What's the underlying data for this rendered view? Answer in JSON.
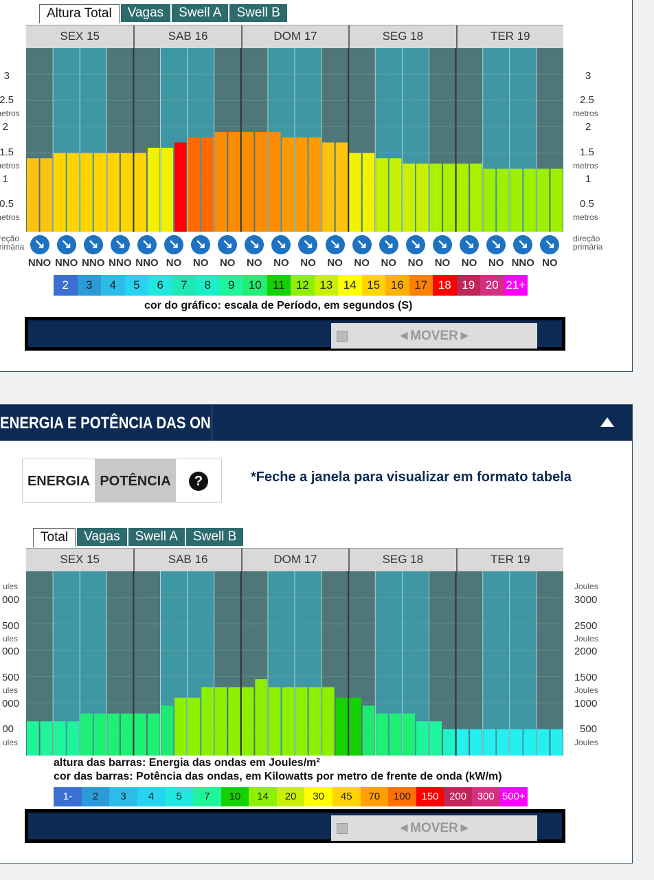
{
  "top": {
    "tabs": [
      "Altura Total",
      "Vagas",
      "Swell A",
      "Swell B"
    ],
    "days": [
      "SEX 15",
      "SAB 16",
      "DOM 17",
      "SEG 18",
      "TER 19"
    ],
    "y_labels": [
      "3",
      "2.5",
      "2",
      "1.5",
      "1",
      "0.5"
    ],
    "y_unit": "metros",
    "dir_label": "direção primária",
    "dir_label_left": "ireção primária",
    "bar_heights_m": [
      1.4,
      1.4,
      1.5,
      1.5,
      1.5,
      1.5,
      1.5,
      1.5,
      1.5,
      1.6,
      1.6,
      1.7,
      1.8,
      1.8,
      1.9,
      1.9,
      1.9,
      1.9,
      1.9,
      1.8,
      1.8,
      1.8,
      1.7,
      1.7,
      1.5,
      1.5,
      1.4,
      1.4,
      1.3,
      1.3,
      1.3,
      1.3,
      1.3,
      1.3,
      1.2,
      1.2,
      1.2,
      1.2,
      1.2,
      1.2
    ],
    "bar_colors": [
      "#ffc20e",
      "#ffc20e",
      "#ffd400",
      "#ffd400",
      "#ffd400",
      "#ffd400",
      "#ffd400",
      "#ffd400",
      "#ffd400",
      "#f2f200",
      "#f2f200",
      "#ff0000",
      "#ff6a00",
      "#ff6a00",
      "#ff8c00",
      "#ff8c00",
      "#ff8c00",
      "#ff8c00",
      "#ff8c00",
      "#ff9900",
      "#ff9900",
      "#ff9900",
      "#ffc20e",
      "#ffc20e",
      "#f2f200",
      "#f2f200",
      "#c8f000",
      "#c8f000",
      "#c8f000",
      "#c8f000",
      "#aaf000",
      "#aaf000",
      "#aaf000",
      "#aaf000",
      "#9cf000",
      "#9cf000",
      "#9cf000",
      "#9cf000",
      "#9cf000",
      "#9cf000"
    ],
    "directions": [
      "NNO",
      "NNO",
      "NNO",
      "NNO",
      "NNO",
      "NO",
      "NO",
      "NO",
      "NO",
      "NO",
      "NO",
      "NO",
      "NO",
      "NO",
      "NO",
      "NO",
      "NO",
      "NO",
      "NNO",
      "NO"
    ],
    "legend": [
      {
        "label": "2",
        "color": "#3b6fd1"
      },
      {
        "label": "3",
        "color": "#2a9ad8"
      },
      {
        "label": "4",
        "color": "#2bbde8"
      },
      {
        "label": "5",
        "color": "#24d4f0"
      },
      {
        "label": "6",
        "color": "#20e8e0"
      },
      {
        "label": "7",
        "color": "#1ee8b5"
      },
      {
        "label": "8",
        "color": "#19f0c8"
      },
      {
        "label": "9",
        "color": "#1ef59a"
      },
      {
        "label": "10",
        "color": "#1ef074"
      },
      {
        "label": "11",
        "color": "#14d200"
      },
      {
        "label": "12",
        "color": "#8cf000"
      },
      {
        "label": "13",
        "color": "#c8f000"
      },
      {
        "label": "14",
        "color": "#ffff00"
      },
      {
        "label": "15",
        "color": "#ffd400"
      },
      {
        "label": "16",
        "color": "#ffb000"
      },
      {
        "label": "17",
        "color": "#ff8000"
      },
      {
        "label": "18",
        "color": "#ff0000"
      },
      {
        "label": "19",
        "color": "#c0245a"
      },
      {
        "label": "20",
        "color": "#d62e80"
      },
      {
        "label": "21+",
        "color": "#ff00ff"
      }
    ],
    "caption": "cor do gráfico: escala de Período, em segundos (S)",
    "mover": "◄MOVER►"
  },
  "bottom": {
    "section_title": "ENERGIA E POTÊNCIA DAS ONDAS",
    "seg_energia": "ENERGIA",
    "seg_potencia": "POTÊNCIA",
    "seg_help": "?",
    "note": "*Feche a janela para visualizar em formato tabela",
    "tabs": [
      "Total",
      "Vagas",
      "Swell A",
      "Swell B"
    ],
    "days": [
      "SEX 15",
      "SAB 16",
      "DOM 17",
      "SEG 18",
      "TER 19"
    ],
    "y_labels": [
      "3000",
      "2500",
      "2000",
      "1500",
      "1000",
      "500"
    ],
    "y_labels_left": [
      "000",
      "500",
      "000",
      "500",
      "000",
      "00"
    ],
    "y_unit": "Joules",
    "y_unit_left": "ules",
    "bar_joules": [
      650,
      650,
      650,
      650,
      800,
      800,
      800,
      800,
      800,
      800,
      950,
      1100,
      1100,
      1300,
      1300,
      1300,
      1300,
      1450,
      1300,
      1300,
      1300,
      1300,
      1300,
      1100,
      1100,
      950,
      800,
      800,
      800,
      650,
      650,
      500,
      500,
      500,
      500,
      500,
      500,
      500,
      500,
      500
    ],
    "bar_colors": [
      "#1ef59a",
      "#1ef59a",
      "#1ef59a",
      "#1ef59a",
      "#1ef074",
      "#1ef074",
      "#1ef074",
      "#1ef074",
      "#1ef074",
      "#1ef074",
      "#1ee870",
      "#8cf000",
      "#8cf000",
      "#8cf000",
      "#8cf000",
      "#8cf000",
      "#8cf000",
      "#8cf000",
      "#8cf000",
      "#8cf000",
      "#8cf000",
      "#8cf000",
      "#8cf000",
      "#14d200",
      "#14d200",
      "#1ee870",
      "#1ef074",
      "#1ef074",
      "#1ef074",
      "#1ef59a",
      "#1ef59a",
      "#1ef5c8",
      "#24f0f0",
      "#24f0f0",
      "#24f0f0",
      "#24f0f0",
      "#24f0f0",
      "#24f0f0",
      "#24f0f0",
      "#24f0f0"
    ],
    "caption1": "altura das barras: Energia das ondas em Joules/m²",
    "caption2": "cor das barras: Potência das ondas, em Kilowatts por metro de frente de onda (kW/m)",
    "legend": [
      {
        "label": "1-",
        "color": "#3b6fd1"
      },
      {
        "label": "2",
        "color": "#2a9ad8"
      },
      {
        "label": "3",
        "color": "#2bbde8"
      },
      {
        "label": "4",
        "color": "#24d4f0"
      },
      {
        "label": "5",
        "color": "#20e8e0"
      },
      {
        "label": "7",
        "color": "#1ef59a"
      },
      {
        "label": "10",
        "color": "#14d200"
      },
      {
        "label": "14",
        "color": "#8cf000"
      },
      {
        "label": "20",
        "color": "#c8f000"
      },
      {
        "label": "30",
        "color": "#ffff00"
      },
      {
        "label": "45",
        "color": "#ffd400"
      },
      {
        "label": "70",
        "color": "#ffa000"
      },
      {
        "label": "100",
        "color": "#ff7000"
      },
      {
        "label": "150",
        "color": "#ff0000"
      },
      {
        "label": "200",
        "color": "#c0245a"
      },
      {
        "label": "300",
        "color": "#d62e80"
      },
      {
        "label": "500+",
        "color": "#ff00ff"
      }
    ],
    "mover": "◄MOVER►"
  }
}
